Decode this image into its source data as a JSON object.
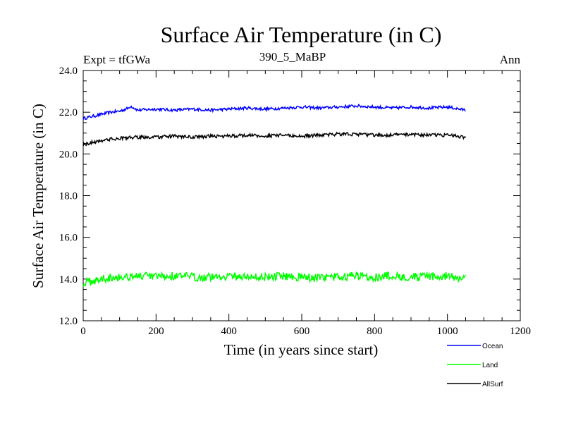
{
  "chart_data": {
    "type": "line",
    "title": "Surface Air Temperature (in C)",
    "subtitle": "390_5_MaBP",
    "left_label": "Expt = tfGWa",
    "right_label": "Ann",
    "xlabel": "Time (in years since start)",
    "ylabel": "Surface Air Temperature (in C)",
    "xlim": [
      0,
      1200
    ],
    "ylim": [
      12.0,
      24.0
    ],
    "x_ticks": [
      0,
      200,
      400,
      600,
      800,
      1000,
      1200
    ],
    "x_tick_labels": [
      "0",
      "200",
      "400",
      "600",
      "800",
      "1000",
      "1200"
    ],
    "y_ticks": [
      12.0,
      14.0,
      16.0,
      18.0,
      20.0,
      22.0,
      24.0
    ],
    "y_tick_labels": [
      "12.0",
      "14.0",
      "16.0",
      "18.0",
      "20.0",
      "22.0",
      "24.0"
    ],
    "legend_position": "bottom-right, below plot",
    "series": [
      {
        "name": "Ocean",
        "color": "#0000ff",
        "x": [
          0,
          25,
          50,
          75,
          100,
          125,
          130,
          150,
          200,
          250,
          300,
          350,
          400,
          450,
          500,
          550,
          600,
          650,
          700,
          750,
          800,
          850,
          900,
          950,
          1000,
          1050
        ],
        "values": [
          21.7,
          21.8,
          21.9,
          22.0,
          22.05,
          22.2,
          22.3,
          22.1,
          22.15,
          22.1,
          22.15,
          22.1,
          22.15,
          22.2,
          22.15,
          22.2,
          22.25,
          22.2,
          22.25,
          22.3,
          22.25,
          22.2,
          22.25,
          22.2,
          22.25,
          22.1
        ]
      },
      {
        "name": "Land",
        "color": "#00ff00",
        "x": [
          0,
          25,
          50,
          75,
          100,
          150,
          200,
          250,
          300,
          350,
          400,
          450,
          500,
          550,
          600,
          650,
          700,
          750,
          800,
          850,
          900,
          950,
          1000,
          1050
        ],
        "values": [
          13.8,
          13.9,
          14.0,
          14.1,
          14.1,
          14.15,
          14.1,
          14.15,
          14.1,
          14.1,
          14.15,
          14.1,
          14.1,
          14.15,
          14.1,
          14.05,
          14.1,
          14.15,
          14.1,
          14.15,
          14.1,
          14.1,
          14.15,
          14.0
        ]
      },
      {
        "name": "AllSurf",
        "color": "#000000",
        "x": [
          0,
          25,
          50,
          75,
          100,
          150,
          200,
          250,
          300,
          350,
          400,
          450,
          500,
          550,
          600,
          650,
          700,
          750,
          800,
          850,
          900,
          950,
          1000,
          1050
        ],
        "values": [
          20.45,
          20.55,
          20.65,
          20.7,
          20.75,
          20.8,
          20.8,
          20.85,
          20.8,
          20.85,
          20.85,
          20.9,
          20.85,
          20.9,
          20.85,
          20.9,
          20.95,
          20.95,
          20.9,
          20.9,
          20.95,
          20.9,
          20.9,
          20.8
        ]
      }
    ]
  }
}
